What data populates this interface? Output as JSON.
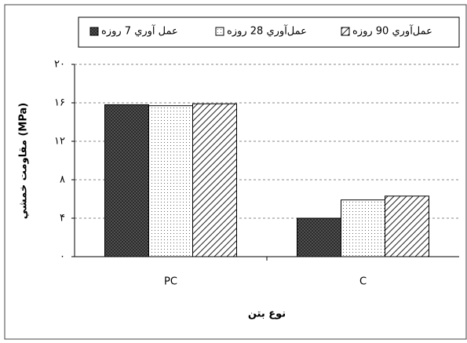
{
  "chart_data": {
    "type": "bar",
    "categories": [
      "PC",
      "C"
    ],
    "series": [
      {
        "name": "عمل آوري 7 روزه",
        "color": "#5a5a5a",
        "values": [
          15.8,
          4
        ]
      },
      {
        "name": "عمل‌آوري 28 روزه",
        "color": "#ffffff",
        "values": [
          15.7,
          5.9
        ]
      },
      {
        "name": "عمل‌آوري 90 روزه",
        "color": "#ffffff",
        "values": [
          15.9,
          6.3
        ]
      }
    ],
    "y_label": "مقاومت خمشي (MPa)",
    "x_label": "نوع بتن",
    "ylim": [
      0,
      20
    ],
    "yticks": [
      {
        "value": 0,
        "label": "۰"
      },
      {
        "value": 4,
        "label": "۴"
      },
      {
        "value": 8,
        "label": "۸"
      },
      {
        "value": 12,
        "label": "۱۲"
      },
      {
        "value": 16,
        "label": "۱۶"
      },
      {
        "value": 20,
        "label": "۲۰"
      }
    ],
    "grid": true
  }
}
